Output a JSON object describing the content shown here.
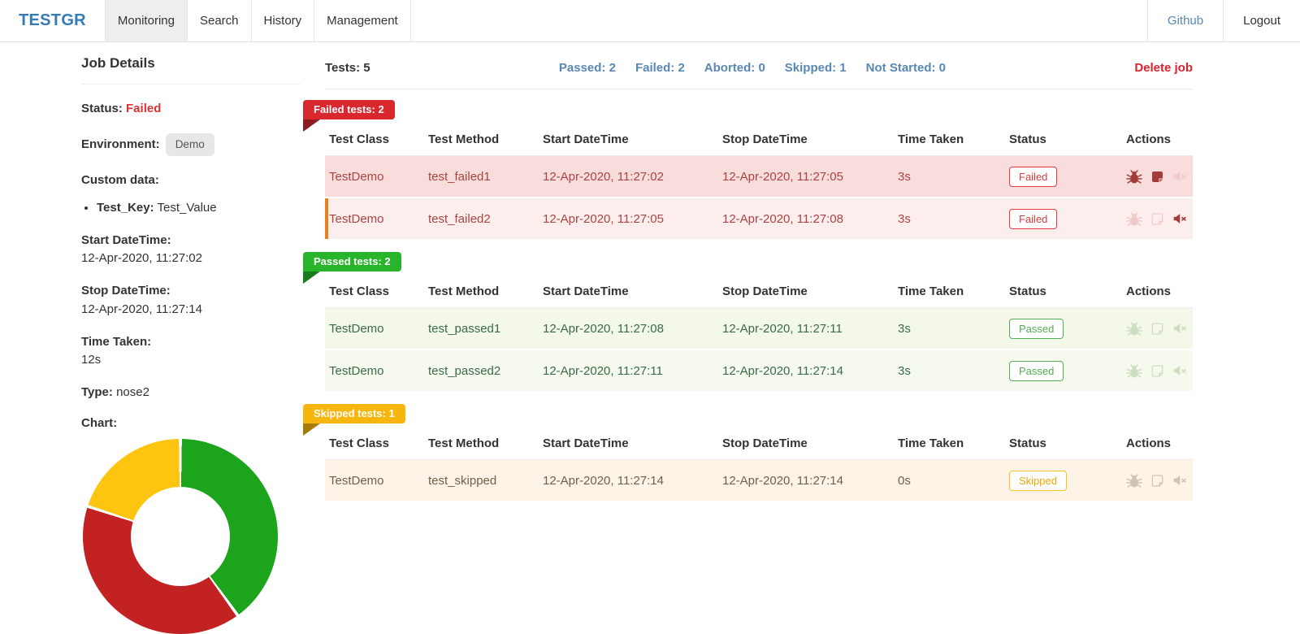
{
  "nav": {
    "brand": "TESTGR",
    "tabs": [
      {
        "label": "Monitoring",
        "active": true
      },
      {
        "label": "Search",
        "active": false
      },
      {
        "label": "History",
        "active": false
      },
      {
        "label": "Management",
        "active": false
      }
    ],
    "right_links": [
      {
        "label": "Github",
        "style": "link"
      },
      {
        "label": "Logout",
        "style": "plain"
      }
    ]
  },
  "job_details": {
    "title": "Job Details",
    "status_label": "Status:",
    "status_value": "Failed",
    "environment_label": "Environment:",
    "environment_value": "Demo",
    "custom_data_label": "Custom data:",
    "custom_data": [
      {
        "key": "Test_Key:",
        "value": "Test_Value"
      }
    ],
    "start_label": "Start DateTime:",
    "start_value": "12-Apr-2020, 11:27:02",
    "stop_label": "Stop DateTime:",
    "stop_value": "12-Apr-2020, 11:27:14",
    "time_label": "Time Taken:",
    "time_value": "12s",
    "type_label": "Type:",
    "type_value": "nose2",
    "chart_label": "Chart:"
  },
  "summary": {
    "tests_label": "Tests: 5",
    "links": [
      {
        "label": "Passed: 2"
      },
      {
        "label": "Failed: 2"
      },
      {
        "label": "Aborted: 0"
      },
      {
        "label": "Skipped: 1"
      },
      {
        "label": "Not Started: 0"
      }
    ],
    "delete_label": "Delete job"
  },
  "columns": [
    "Test Class",
    "Test Method",
    "Start DateTime",
    "Stop DateTime",
    "Time Taken",
    "Status",
    "Actions"
  ],
  "tables": [
    {
      "badge": "Failed tests: 2",
      "variant": "failed",
      "rows": [
        {
          "test_class": "TestDemo",
          "test_method": "test_failed1",
          "start": "12-Apr-2020, 11:27:02",
          "stop": "12-Apr-2020, 11:27:05",
          "time_taken": "3s",
          "status": "Failed",
          "actions": {
            "bug": "solid",
            "note": "solid",
            "mute": "faded"
          },
          "left_accent": false
        },
        {
          "test_class": "TestDemo",
          "test_method": "test_failed2",
          "start": "12-Apr-2020, 11:27:05",
          "stop": "12-Apr-2020, 11:27:08",
          "time_taken": "3s",
          "status": "Failed",
          "actions": {
            "bug": "faded",
            "note": "faded",
            "mute": "solid"
          },
          "left_accent": true
        }
      ]
    },
    {
      "badge": "Passed tests: 2",
      "variant": "passed",
      "rows": [
        {
          "test_class": "TestDemo",
          "test_method": "test_passed1",
          "start": "12-Apr-2020, 11:27:08",
          "stop": "12-Apr-2020, 11:27:11",
          "time_taken": "3s",
          "status": "Passed",
          "actions": {
            "bug": "faded",
            "note": "faded",
            "mute": "faded"
          },
          "left_accent": false
        },
        {
          "test_class": "TestDemo",
          "test_method": "test_passed2",
          "start": "12-Apr-2020, 11:27:11",
          "stop": "12-Apr-2020, 11:27:14",
          "time_taken": "3s",
          "status": "Passed",
          "actions": {
            "bug": "faded",
            "note": "faded",
            "mute": "faded"
          },
          "left_accent": false
        }
      ]
    },
    {
      "badge": "Skipped tests: 1",
      "variant": "skipped",
      "rows": [
        {
          "test_class": "TestDemo",
          "test_method": "test_skipped",
          "start": "12-Apr-2020, 11:27:14",
          "stop": "12-Apr-2020, 11:27:14",
          "time_taken": "0s",
          "status": "Skipped",
          "actions": {
            "bug": "faded",
            "note": "faded",
            "mute": "faded"
          },
          "left_accent": false
        }
      ]
    }
  ],
  "chart_data": {
    "type": "pie",
    "donut": true,
    "labels": [
      "Passed",
      "Failed",
      "Skipped"
    ],
    "values": [
      2,
      2,
      1
    ],
    "colors": [
      "#1ca41c",
      "#c32222",
      "#fdc50f"
    ],
    "start_angle_deg": 0,
    "direction": "clockwise",
    "legend": "none"
  },
  "colors": {
    "brand": "#337ab7",
    "summary_link": "#5a87b4",
    "delete": "#d9232d",
    "failed_accent": "#e13b3b",
    "passed_accent": "#53ad53",
    "skipped_accent": "#f0a80c",
    "failed_ribbon": "#d9272e",
    "passed_ribbon": "#29b52b",
    "skipped_ribbon": "#f6b60d",
    "row_accent_orange": "#e8821e"
  },
  "icons": [
    "bug-icon",
    "note-icon",
    "mute-icon"
  ]
}
